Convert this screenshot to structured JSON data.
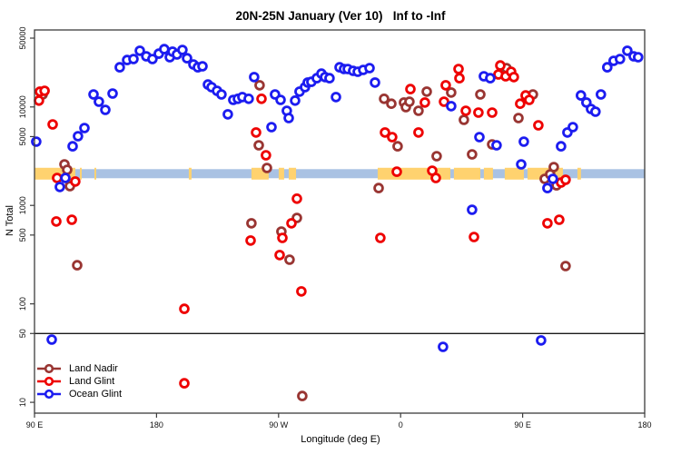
{
  "title": "20N-25N January (Ver 10)   Inf to -Inf",
  "chart_data": {
    "type": "scatter",
    "x_axis": {
      "label": "Longitude (deg E)",
      "range": [
        90,
        540
      ],
      "ticks": [
        90,
        180,
        270,
        360,
        450,
        540
      ],
      "tick_labels": [
        "90 E",
        "180",
        "90 W",
        "0",
        "90 E",
        "180"
      ]
    },
    "y_axis": {
      "label": "N Total",
      "scale": "log",
      "range": [
        10,
        50000
      ],
      "ticks": [
        50000,
        10000,
        5000,
        1000,
        500,
        100,
        50,
        10
      ],
      "tick_labels": [
        "50000",
        "10000",
        "5000",
        "1000",
        "500",
        "100",
        "50",
        "10"
      ]
    },
    "reference_line_y": 50,
    "land_ocean_band": {
      "center_value": 2100,
      "ocean_color": "#A9C2E3",
      "land_color": "#FFD26F",
      "land_segments_deg": [
        [
          90,
          120.1
        ],
        [
          123.5,
          124.8
        ],
        [
          134.2,
          135.5
        ],
        [
          203.8,
          205.8
        ],
        [
          250,
          262.7
        ],
        [
          270.1,
          274.1
        ],
        [
          277.5,
          282.9
        ],
        [
          343.1,
          396.7
        ],
        [
          399.3,
          418.8
        ],
        [
          421.4,
          428.1
        ],
        [
          436.8,
          450.9
        ],
        [
          453.6,
          479.7
        ],
        [
          490.4,
          493
        ]
      ]
    },
    "series": [
      {
        "name": "Land Nadir",
        "color": "#993532",
        "points": [
          [
            96,
            13400
          ],
          [
            121.5,
            247
          ],
          [
            112.1,
            2610
          ],
          [
            114.1,
            2300
          ],
          [
            116.1,
            1570
          ],
          [
            256,
            16600
          ],
          [
            255.4,
            4080
          ],
          [
            261.4,
            2400
          ],
          [
            250,
            658
          ],
          [
            272.1,
            543
          ],
          [
            283.5,
            746
          ],
          [
            278.1,
            281
          ],
          [
            287.5,
            11.6
          ],
          [
            343.8,
            1500
          ],
          [
            347.8,
            12100
          ],
          [
            353.2,
            10800
          ],
          [
            357.8,
            3990
          ],
          [
            362.5,
            11100
          ],
          [
            363.9,
            9960
          ],
          [
            366.5,
            11300
          ],
          [
            373.2,
            9140
          ],
          [
            379.3,
            14300
          ],
          [
            386.6,
            3160
          ],
          [
            397.3,
            14000
          ],
          [
            406.7,
            7390
          ],
          [
            412.7,
            3300
          ],
          [
            418.8,
            13400
          ],
          [
            427.5,
            4170
          ],
          [
            438.1,
            24800
          ],
          [
            446.9,
            7710
          ],
          [
            457.6,
            13400
          ],
          [
            466.3,
            1860
          ],
          [
            470.3,
            2070
          ],
          [
            473,
            2450
          ],
          [
            475,
            1600
          ],
          [
            481.7,
            242
          ]
        ]
      },
      {
        "name": "Land Glint",
        "color": "#EE0000",
        "points": [
          [
            94,
            14300
          ],
          [
            97.4,
            14600
          ],
          [
            93.3,
            11600
          ],
          [
            103.4,
            6650
          ],
          [
            106.7,
            1900
          ],
          [
            120.1,
            1750
          ],
          [
            106.1,
            687
          ],
          [
            117.5,
            716
          ],
          [
            200.5,
            89
          ],
          [
            200.5,
            15.6
          ],
          [
            253.4,
            5500
          ],
          [
            257.4,
            12100
          ],
          [
            260.7,
            3230
          ],
          [
            283.5,
            1170
          ],
          [
            249.4,
            440
          ],
          [
            272.8,
            468
          ],
          [
            279.5,
            658
          ],
          [
            270.8,
            313
          ],
          [
            286.8,
            134
          ],
          [
            345.1,
            468
          ],
          [
            348.5,
            5500
          ],
          [
            353.8,
            4940
          ],
          [
            357.2,
            2200
          ],
          [
            367.2,
            15200
          ],
          [
            373.2,
            5500
          ],
          [
            377.9,
            11100
          ],
          [
            383.3,
            2250
          ],
          [
            386,
            1900
          ],
          [
            392,
            11300
          ],
          [
            393.3,
            16600
          ],
          [
            402.7,
            24300
          ],
          [
            403.4,
            19600
          ],
          [
            408.1,
            9140
          ],
          [
            414.1,
            478
          ],
          [
            417.4,
            8770
          ],
          [
            427.5,
            8770
          ],
          [
            433.5,
            26400
          ],
          [
            432.1,
            21400
          ],
          [
            437.5,
            20500
          ],
          [
            441.5,
            22800
          ],
          [
            443.5,
            20100
          ],
          [
            448.2,
            10800
          ],
          [
            452.2,
            13100
          ],
          [
            454.9,
            11800
          ],
          [
            461.6,
            6510
          ],
          [
            468.3,
            658
          ],
          [
            477,
            716
          ],
          [
            478.3,
            1710
          ],
          [
            481.7,
            1820
          ]
        ]
      },
      {
        "name": "Ocean Glint",
        "color": "#1C1CF0",
        "points": [
          [
            91.3,
            4440
          ],
          [
            102.7,
            43.4
          ],
          [
            118.1,
            3990
          ],
          [
            122.1,
            5050
          ],
          [
            126.8,
            6110
          ],
          [
            133.5,
            13400
          ],
          [
            137.5,
            11300
          ],
          [
            142.2,
            9340
          ],
          [
            147.6,
            13700
          ],
          [
            112.8,
            1900
          ],
          [
            108.7,
            1540
          ],
          [
            152.9,
            25300
          ],
          [
            158.3,
            30000
          ],
          [
            163,
            30700
          ],
          [
            167.7,
            37200
          ],
          [
            172.4,
            32700
          ],
          [
            177,
            30700
          ],
          [
            181.7,
            34800
          ],
          [
            185.7,
            38700
          ],
          [
            189.8,
            32000
          ],
          [
            191.8,
            36400
          ],
          [
            195.1,
            34100
          ],
          [
            199.1,
            37900
          ],
          [
            202.5,
            31300
          ],
          [
            207.2,
            27000
          ],
          [
            210.5,
            25300
          ],
          [
            213.9,
            25900
          ],
          [
            217.9,
            16900
          ],
          [
            220.6,
            15900
          ],
          [
            224.6,
            14600
          ],
          [
            227.9,
            13400
          ],
          [
            232.6,
            8410
          ],
          [
            236.6,
            11800
          ],
          [
            240,
            12100
          ],
          [
            243.3,
            12600
          ],
          [
            248,
            12100
          ],
          [
            252,
            20100
          ],
          [
            264.8,
            6240
          ],
          [
            267.4,
            13400
          ],
          [
            271.5,
            11800
          ],
          [
            276.1,
            9140
          ],
          [
            277.5,
            7710
          ],
          [
            282.2,
            11600
          ],
          [
            285.5,
            14300
          ],
          [
            289.5,
            15900
          ],
          [
            291.5,
            17700
          ],
          [
            294.2,
            18000
          ],
          [
            298.2,
            19600
          ],
          [
            301.6,
            21800
          ],
          [
            304.3,
            20100
          ],
          [
            307.6,
            19600
          ],
          [
            312.3,
            12600
          ],
          [
            315,
            25300
          ],
          [
            318.3,
            24300
          ],
          [
            321,
            24300
          ],
          [
            325,
            23300
          ],
          [
            328.4,
            22800
          ],
          [
            332.4,
            23800
          ],
          [
            337.1,
            24800
          ],
          [
            341.1,
            17700
          ],
          [
            397.3,
            10200
          ],
          [
            412.7,
            904
          ],
          [
            421.4,
            20500
          ],
          [
            426.1,
            19600
          ],
          [
            418.1,
            4940
          ],
          [
            430.8,
            4080
          ],
          [
            450.9,
            4440
          ],
          [
            448.9,
            2610
          ],
          [
            472.3,
            1860
          ],
          [
            468.3,
            1500
          ],
          [
            463.6,
            42.5
          ],
          [
            391.3,
            36.6
          ],
          [
            478.3,
            3990
          ],
          [
            483,
            5500
          ],
          [
            487,
            6240
          ],
          [
            493,
            13100
          ],
          [
            497,
            11100
          ],
          [
            500.4,
            9550
          ],
          [
            503.7,
            8960
          ],
          [
            507.7,
            13400
          ],
          [
            512.4,
            25300
          ],
          [
            517.1,
            29400
          ],
          [
            521.8,
            30700
          ],
          [
            527.2,
            37200
          ],
          [
            531.9,
            32700
          ],
          [
            535.2,
            32000
          ]
        ]
      }
    ]
  },
  "legend": {
    "items": [
      {
        "label": "Land Nadir",
        "color": "#993532"
      },
      {
        "label": "Land Glint",
        "color": "#EE0000"
      },
      {
        "label": "Ocean Glint",
        "color": "#1C1CF0"
      }
    ]
  }
}
